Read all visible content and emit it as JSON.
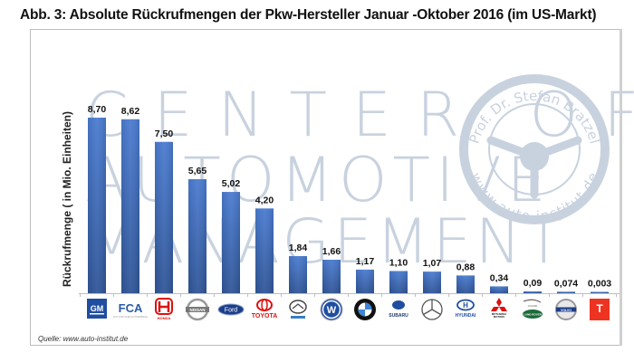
{
  "figure": {
    "title": "Abb. 3: Absolute Rückrufmengen der Pkw-Hersteller Januar -Oktober 2016 (im US-Markt)",
    "source": "Quelle: www.auto-institut.de",
    "watermark": {
      "lines": [
        "CENTER OF",
        "AUTOMOTIVE",
        "MANAGEMENT"
      ],
      "seal_top": "Prof. Dr. Stefan Bratzel",
      "seal_bottom": "www.auto-institut.de"
    },
    "colors": {
      "bar": "#4472c4",
      "bar_dark": "#2f5597",
      "watermark": "#c8d2df"
    }
  },
  "chart_data": {
    "type": "bar",
    "title": "Abb. 3: Absolute Rückrufmengen der Pkw-Hersteller Januar -Oktober 2016 (im US-Markt)",
    "xlabel": "",
    "ylabel": "Rückrufmenge  ( in Mio. Einheiten)",
    "ylim": [
      0,
      9
    ],
    "grid": false,
    "legend": "none",
    "categories": [
      "GM",
      "FCA",
      "Honda",
      "Nissan",
      "Ford",
      "Toyota",
      "Mazda",
      "VW",
      "BMW",
      "Subaru",
      "Mercedes",
      "Hyundai",
      "Mitsubishi",
      "Jaguar Land Rover",
      "Volvo",
      "Tesla"
    ],
    "values": [
      8.7,
      8.62,
      7.5,
      5.65,
      5.02,
      4.2,
      1.84,
      1.66,
      1.17,
      1.1,
      1.07,
      0.88,
      0.34,
      0.09,
      0.074,
      0.003
    ],
    "data_labels": [
      "8,70",
      "8,62",
      "7,50",
      "5,65",
      "5,02",
      "4,20",
      "1,84",
      "1,66",
      "1,17",
      "1,10",
      "1,07",
      "0,88",
      "0,34",
      "0,09",
      "0,074",
      "0,003"
    ],
    "category_logos": [
      "gm-logo",
      "fca-logo",
      "honda-logo",
      "nissan-logo",
      "ford-logo",
      "toyota-logo",
      "mazda-logo",
      "vw-logo",
      "bmw-logo",
      "subaru-logo",
      "mercedes-logo",
      "hyundai-logo",
      "mitsubishi-logo",
      "jaguar-land-rover-logo",
      "volvo-logo",
      "tesla-logo"
    ],
    "logo_texts": [
      "GM",
      "FCA",
      "HONDA",
      "NISSAN",
      "Ford",
      "TOYOTA",
      "mazda",
      "VW",
      "BMW",
      "SUBARU",
      "",
      "HYUNDAI",
      "MITSUBISHI",
      "LAND ROVER",
      "VOLVO",
      "T"
    ]
  }
}
